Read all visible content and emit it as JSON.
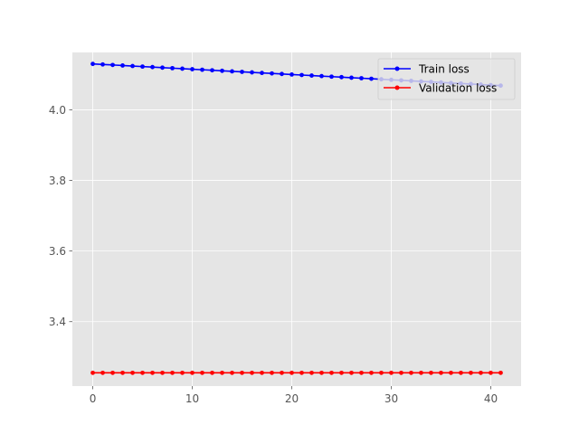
{
  "chart_data": {
    "type": "line",
    "title": "",
    "xlabel": "",
    "ylabel": "",
    "xlim": [
      -2.05,
      43.05
    ],
    "ylim": [
      3.2175,
      4.1625
    ],
    "x_ticks": [
      0,
      10,
      20,
      30,
      40
    ],
    "y_ticks": [
      3.4,
      3.6,
      3.8,
      4.0
    ],
    "y_tick_labels": [
      "3.4",
      "3.6",
      "3.8",
      "4.0"
    ],
    "grid": true,
    "legend_position": "top-right",
    "x": [
      0,
      1,
      2,
      3,
      4,
      5,
      6,
      7,
      8,
      9,
      10,
      11,
      12,
      13,
      14,
      15,
      16,
      17,
      18,
      19,
      20,
      21,
      22,
      23,
      24,
      25,
      26,
      27,
      28,
      29,
      30,
      31,
      32,
      33,
      34,
      35,
      36,
      37,
      38,
      39,
      40,
      41
    ],
    "series": [
      {
        "name": "Train loss",
        "color": "#0000ff",
        "values": [
          4.13,
          4.1285,
          4.127,
          4.1255,
          4.124,
          4.1225,
          4.121,
          4.1195,
          4.118,
          4.1165,
          4.115,
          4.1135,
          4.112,
          4.1105,
          4.109,
          4.1075,
          4.106,
          4.1045,
          4.103,
          4.1015,
          4.1,
          4.0985,
          4.097,
          4.0955,
          4.094,
          4.0925,
          4.091,
          4.0895,
          4.088,
          4.0865,
          4.085,
          4.0835,
          4.082,
          4.0805,
          4.079,
          4.0775,
          4.076,
          4.0745,
          4.073,
          4.0715,
          4.07,
          4.0685
        ]
      },
      {
        "name": "Validation loss",
        "color": "#ff0000",
        "values": [
          3.255,
          3.255,
          3.255,
          3.255,
          3.255,
          3.255,
          3.255,
          3.255,
          3.255,
          3.255,
          3.255,
          3.255,
          3.255,
          3.255,
          3.255,
          3.255,
          3.255,
          3.255,
          3.255,
          3.255,
          3.255,
          3.255,
          3.255,
          3.255,
          3.255,
          3.255,
          3.255,
          3.255,
          3.255,
          3.255,
          3.255,
          3.255,
          3.255,
          3.255,
          3.255,
          3.255,
          3.255,
          3.255,
          3.255,
          3.255,
          3.255,
          3.255
        ]
      }
    ]
  }
}
